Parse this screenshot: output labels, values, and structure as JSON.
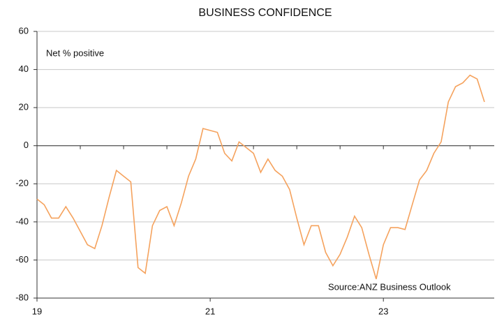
{
  "chart_data": {
    "type": "line",
    "title": "BUSINESS CONFIDENCE",
    "annotations": [
      "Net % positive",
      "Source:ANZ Business Outlook"
    ],
    "x": [
      19,
      19.083,
      19.167,
      19.25,
      19.333,
      19.417,
      19.5,
      19.583,
      19.667,
      19.75,
      19.833,
      19.917,
      20,
      20.083,
      20.167,
      20.25,
      20.333,
      20.417,
      20.5,
      20.583,
      20.667,
      20.75,
      20.833,
      20.917,
      21,
      21.083,
      21.167,
      21.25,
      21.333,
      21.417,
      21.5,
      21.583,
      21.667,
      21.75,
      21.833,
      21.917,
      22,
      22.083,
      22.167,
      22.25,
      22.333,
      22.417,
      22.5,
      22.583,
      22.667,
      22.75,
      22.833,
      22.917,
      23,
      23.083,
      23.167,
      23.25,
      23.333,
      23.417,
      23.5,
      23.583,
      23.667,
      23.75,
      23.833,
      23.917,
      24,
      24.083,
      24.167
    ],
    "series": [
      {
        "color": "#f5a25d",
        "values": [
          -28,
          -31,
          -38,
          -38,
          -32,
          -38,
          -45,
          -52,
          -54,
          -42,
          -27,
          -13,
          -16,
          -19,
          -64,
          -67,
          -42,
          -34,
          -32,
          -42,
          -30,
          -16,
          -7,
          9,
          8,
          7,
          -4,
          -8,
          2,
          -1,
          -4,
          -14,
          -7,
          -13,
          -16,
          -23,
          -38,
          -52,
          -42,
          -42,
          -56,
          -63,
          -57,
          -48,
          -37,
          -43,
          -57,
          -70,
          -52,
          -43,
          -43,
          -44,
          -31,
          -18,
          -13,
          -4,
          2,
          23,
          31,
          33,
          37,
          35,
          23
        ]
      }
    ],
    "xlim": [
      19,
      24.28
    ],
    "xticks": [
      19,
      21,
      23
    ],
    "xminorticks": [
      19.5,
      20,
      20.5,
      21,
      21.5,
      22,
      22.5,
      23,
      23.5,
      24
    ],
    "ylim": [
      -80,
      60
    ],
    "yticks": [
      -80,
      -60,
      -40,
      -20,
      0,
      20,
      40,
      60
    ],
    "grid": true
  }
}
